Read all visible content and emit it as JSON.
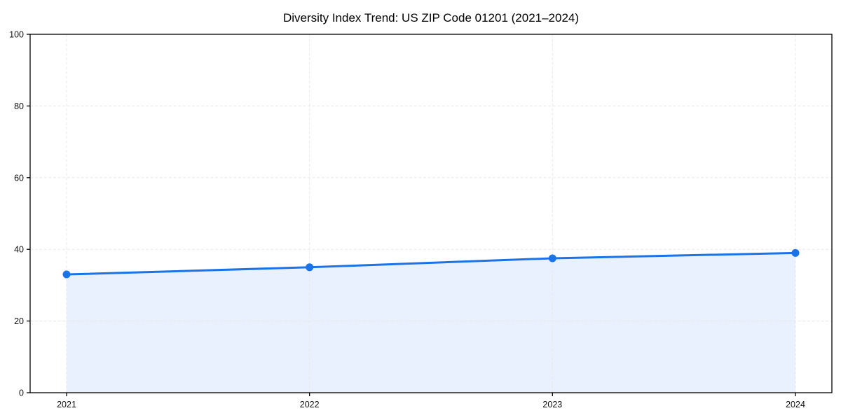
{
  "page": {
    "background_color": "#ffffff"
  },
  "chart_data": {
    "type": "line",
    "title": "Diversity Index Trend: US ZIP Code 01201 (2021–2024)",
    "x": [
      "2021",
      "2022",
      "2023",
      "2024"
    ],
    "series": [
      {
        "name": "Diversity Index",
        "values": [
          33,
          35,
          37.5,
          39
        ],
        "color": "#1a73e8",
        "marker": "circle",
        "line_width": 3,
        "marker_radius": 5.5
      }
    ],
    "area_fill": true,
    "fill_color": "rgba(26,115,232,0.10)",
    "xlabel": "",
    "ylabel": "",
    "ylim": [
      0,
      100
    ],
    "yticks": [
      0,
      20,
      40,
      60,
      80,
      100
    ],
    "legend_position": "none",
    "grid": {
      "show": true,
      "axes": "both",
      "style": "dashed",
      "color": "#e8e8e8"
    },
    "spines": "full-box",
    "axis_color": "#000000",
    "tick_label_color": "#111111"
  }
}
